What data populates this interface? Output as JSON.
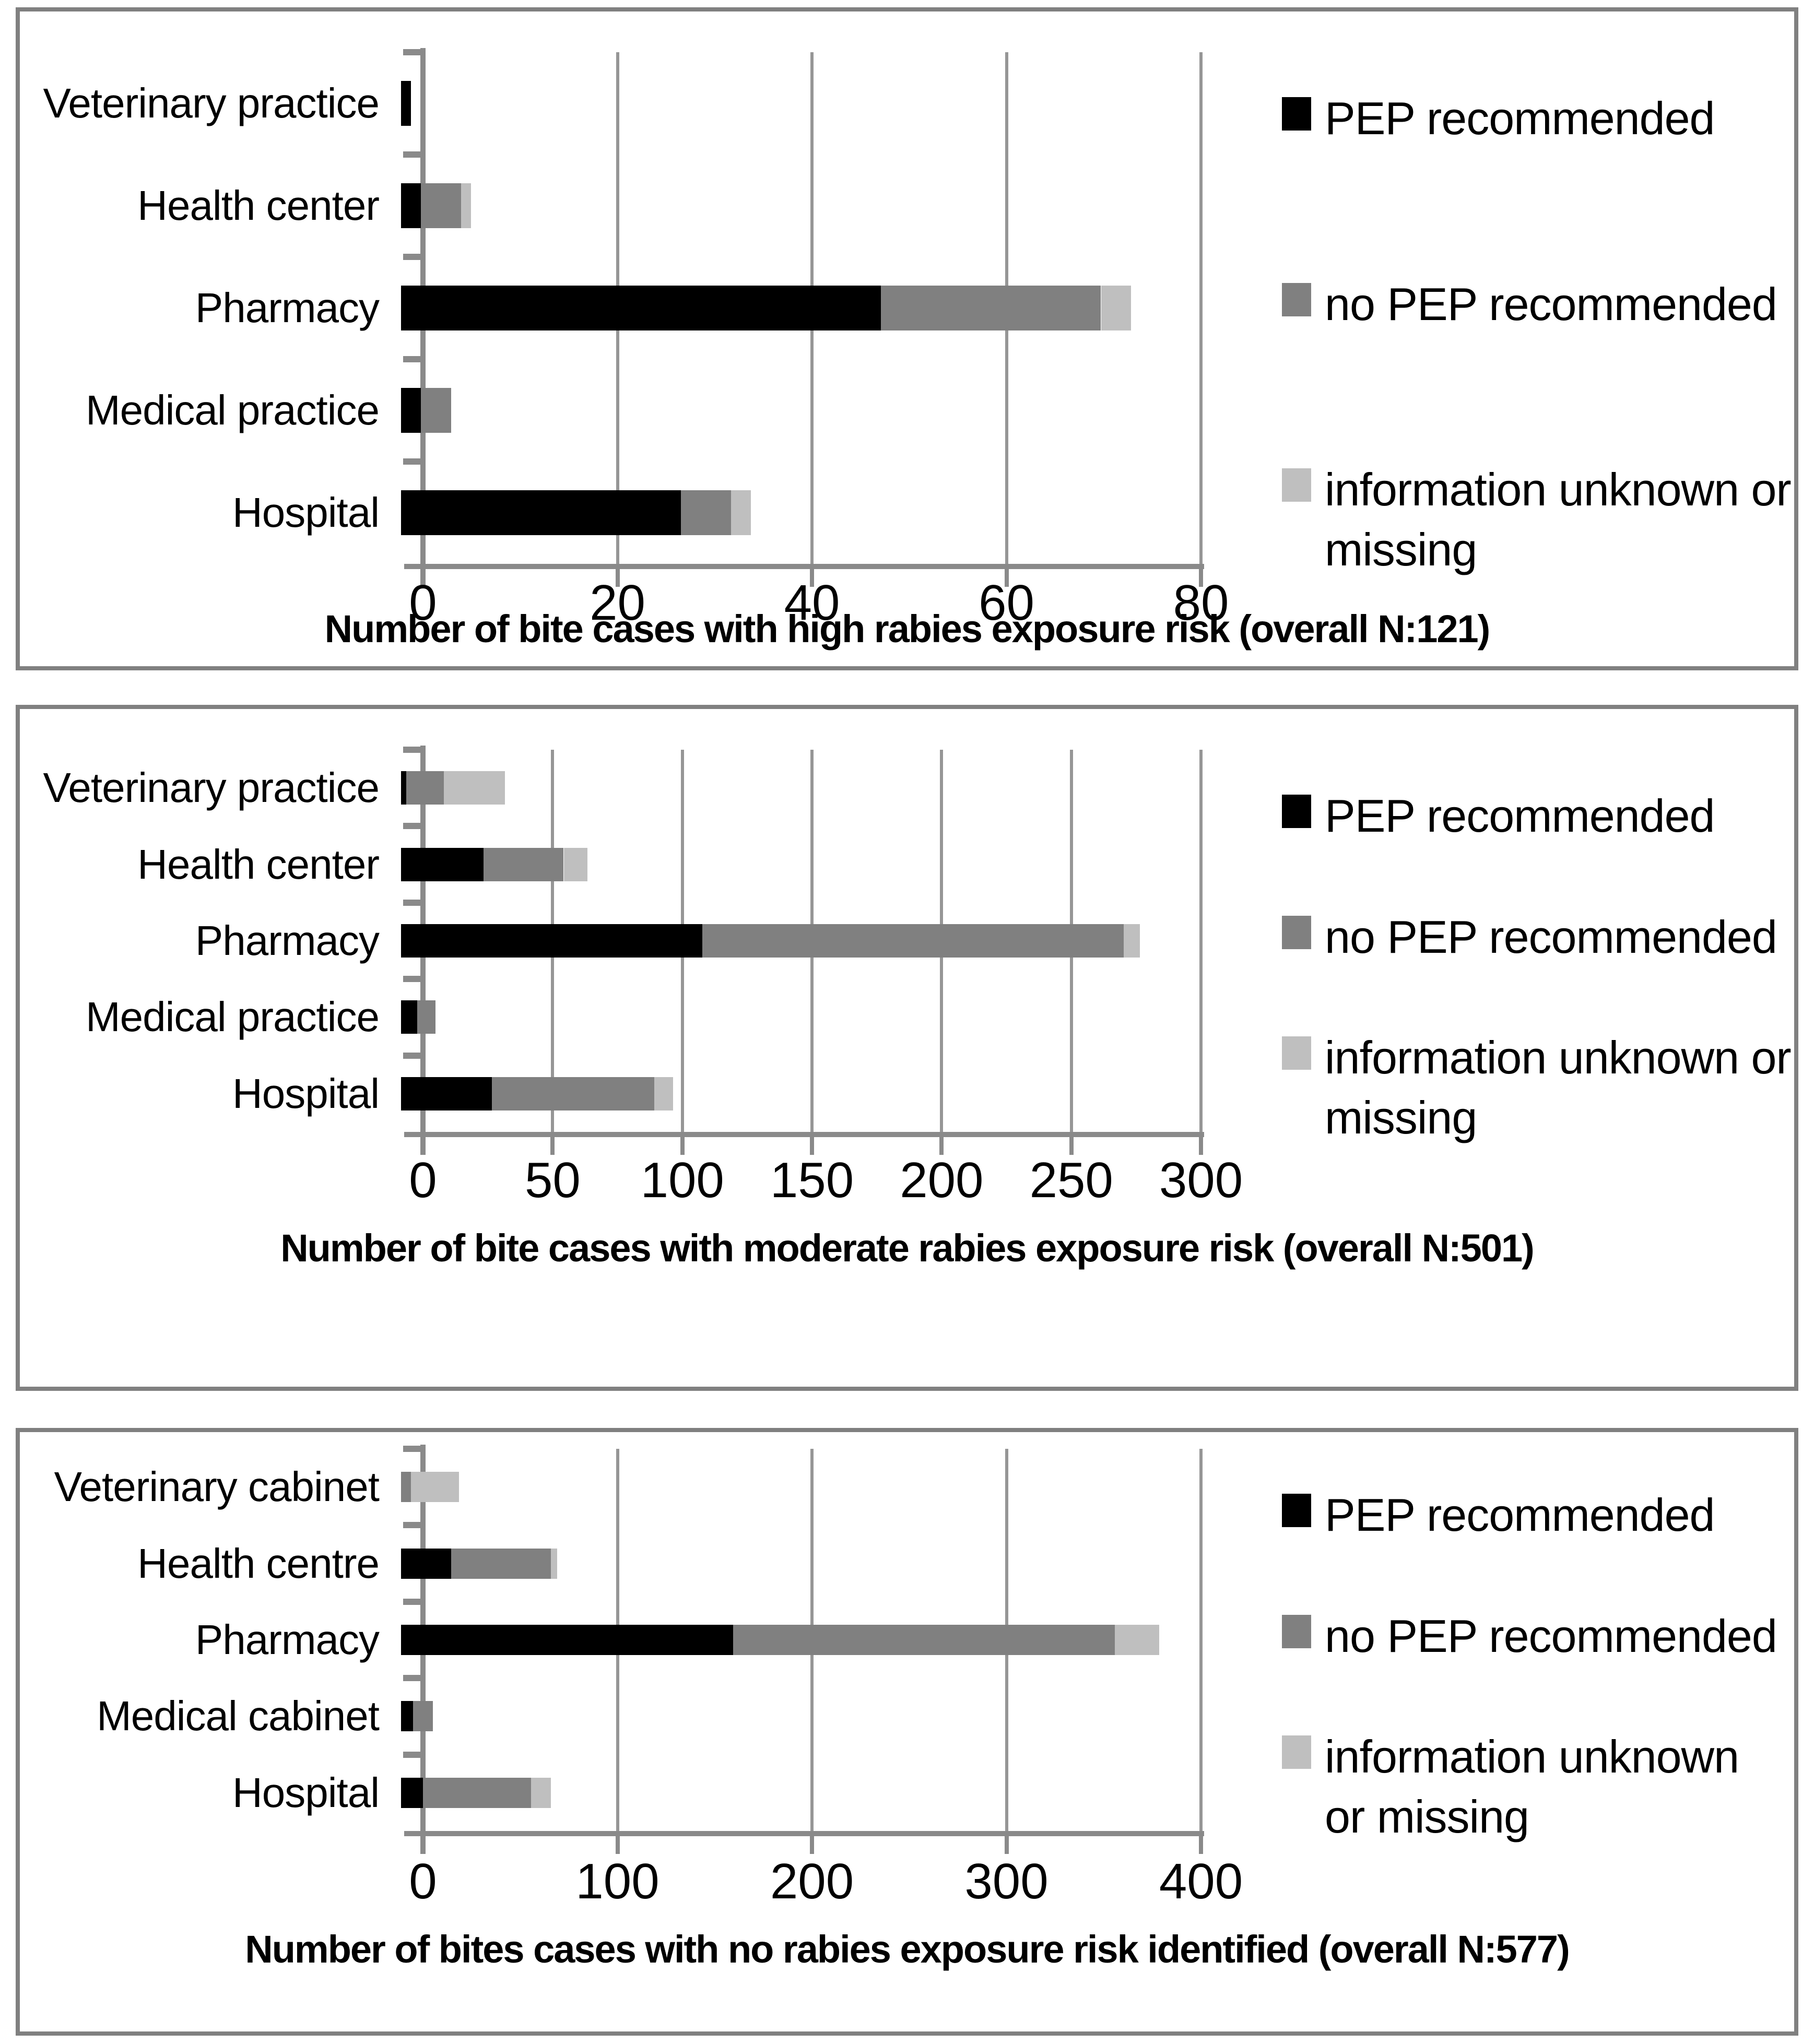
{
  "page": {
    "background": "#ffffff",
    "panel_border_color": "#808080",
    "gridline_color": "#969696",
    "axis_color": "#8a8a8a"
  },
  "chart_data": [
    {
      "type": "bar",
      "orientation": "horizontal",
      "stacked": true,
      "title": "Number of bite cases with high rabies exposure risk (overall N:121)",
      "overall_n": 121,
      "categories": [
        "Veterinary practice",
        "Health center",
        "Pharmacy",
        "Medical practice",
        "Hospital"
      ],
      "series": [
        {
          "name": "PEP recommended",
          "color": "#000000",
          "values": [
            1,
            2,
            48,
            2,
            28
          ]
        },
        {
          "name": "no PEP recommended",
          "color": "#808080",
          "values": [
            0,
            4,
            22,
            3,
            5
          ]
        },
        {
          "name": "information unknown or missing",
          "color": "#bfbfbf",
          "values": [
            0,
            1,
            3,
            0,
            2
          ]
        }
      ],
      "xlim": [
        0,
        80
      ],
      "ticks": [
        0,
        20,
        40,
        60,
        80
      ],
      "grid": true,
      "legend_position": "right",
      "legend_lines": [
        [
          "PEP recommended"
        ],
        [
          "no PEP recommended"
        ],
        [
          "information unknown or",
          "missing"
        ]
      ]
    },
    {
      "type": "bar",
      "orientation": "horizontal",
      "stacked": true,
      "title": "Number of bite cases with moderate rabies exposure risk (overall N:501)",
      "overall_n": 501,
      "categories": [
        "Veterinary practice",
        "Health center",
        "Pharmacy",
        "Medical practice",
        "Hospital"
      ],
      "series": [
        {
          "name": "PEP recommended",
          "color": "#000000",
          "values": [
            2,
            31,
            113,
            6,
            34
          ]
        },
        {
          "name": "no PEP recommended",
          "color": "#808080",
          "values": [
            14,
            30,
            158,
            7,
            61
          ]
        },
        {
          "name": "information unknown or missing",
          "color": "#bfbfbf",
          "values": [
            23,
            9,
            6,
            0,
            7
          ]
        }
      ],
      "xlim": [
        0,
        300
      ],
      "ticks": [
        0,
        50,
        100,
        150,
        200,
        250,
        300
      ],
      "grid": true,
      "legend_position": "right",
      "legend_lines": [
        [
          "PEP recommended"
        ],
        [
          "no PEP recommended"
        ],
        [
          "information unknown or",
          "missing"
        ]
      ]
    },
    {
      "type": "bar",
      "orientation": "horizontal",
      "stacked": true,
      "title": "Number of bites cases with no rabies exposure risk identified (overall N:577)",
      "overall_n": 577,
      "categories": [
        "Veterinary cabinet",
        "Health centre",
        "Pharmacy",
        "Medical cabinet",
        "Hospital"
      ],
      "series": [
        {
          "name": "PEP recommended",
          "color": "#000000",
          "values": [
            0,
            25,
            166,
            6,
            11
          ]
        },
        {
          "name": "no PEP recommended",
          "color": "#808080",
          "values": [
            5,
            50,
            191,
            10,
            54
          ]
        },
        {
          "name": "information unknown or missing",
          "color": "#bfbfbf",
          "values": [
            24,
            3,
            22,
            0,
            10
          ]
        }
      ],
      "xlim": [
        0,
        400
      ],
      "ticks": [
        0,
        100,
        200,
        300,
        400
      ],
      "grid": true,
      "legend_position": "right",
      "legend_lines": [
        [
          "PEP recommended"
        ],
        [
          "no PEP recommended"
        ],
        [
          "information unknown",
          "or missing"
        ]
      ]
    }
  ]
}
